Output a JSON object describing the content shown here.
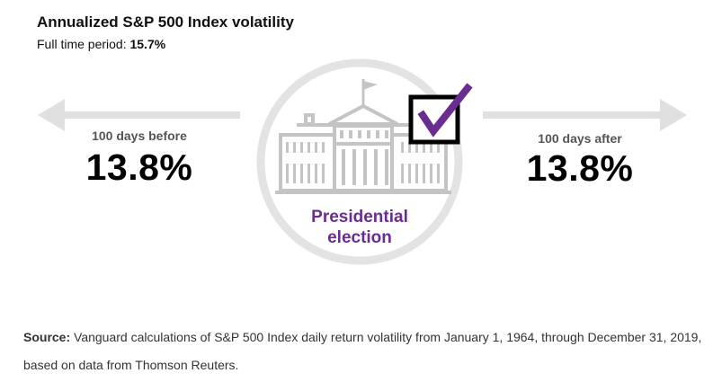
{
  "title": "Annualized S&P 500 Index volatility",
  "subtitle": {
    "prefix": "Full time period: ",
    "value": "15.7%"
  },
  "before": {
    "label": "100 days before",
    "value": "13.8%"
  },
  "after": {
    "label": "100 days after",
    "value": "13.8%"
  },
  "center": {
    "line1": "Presidential",
    "line2": "election"
  },
  "source": {
    "label": "Source:",
    "text": " Vanguard calculations of S&P 500 Index daily return volatility from January 1, 1964, through December 31, 2019, based on data from Thomson Reuters."
  },
  "colors": {
    "accent_purple": "#6b2c91",
    "gray_graphic": "#c4c4c4",
    "circle_gray": "#e3e3e3",
    "arrow_gray": "#e0e0e0"
  },
  "icons": [
    "arrow-left-icon",
    "arrow-right-icon",
    "capitol-building-icon",
    "checkbox-checked-icon"
  ]
}
